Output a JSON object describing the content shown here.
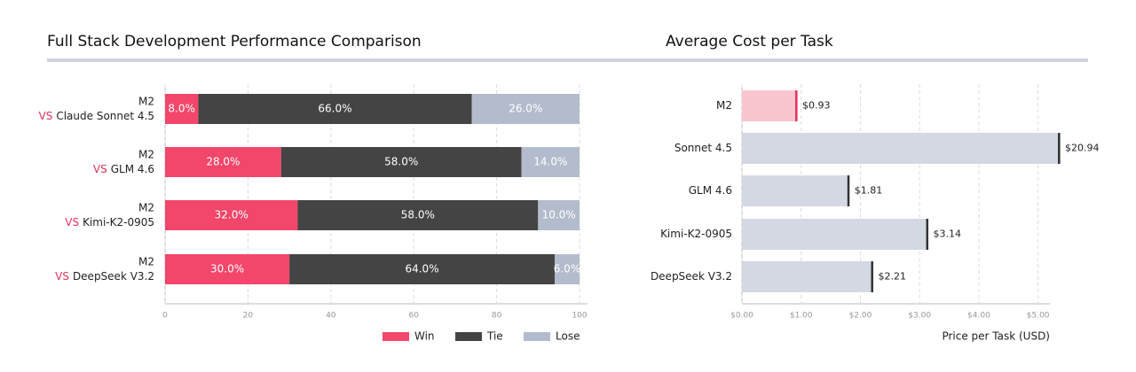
{
  "chart_data": [
    {
      "type": "stacked-bar",
      "orientation": "horizontal",
      "title": "Full Stack Development Performance Comparison",
      "categories": [
        [
          "M2",
          "VS",
          "Claude Sonnet 4.5"
        ],
        [
          "M2",
          "VS",
          "GLM 4.6"
        ],
        [
          "M2",
          "VS",
          "Kimi-K2-0905"
        ],
        [
          "M2",
          "VS",
          "DeepSeek V3.2"
        ]
      ],
      "series": [
        {
          "name": "Win",
          "color": "#f2476a",
          "values": [
            8,
            28,
            32,
            30
          ],
          "value_labels": [
            "8.0%",
            "28.0%",
            "32.0%",
            "30.0%"
          ]
        },
        {
          "name": "Tie",
          "color": "#444444",
          "values": [
            66,
            58,
            58,
            64
          ],
          "value_labels": [
            "66.0%",
            "58.0%",
            "58.0%",
            "64.0%"
          ]
        },
        {
          "name": "Lose",
          "color": "#b3bccd",
          "values": [
            26,
            14,
            10,
            6
          ],
          "value_labels": [
            "26.0%",
            "14.0%",
            "10.0%",
            "6.0%"
          ]
        }
      ],
      "xlim": [
        0,
        100
      ],
      "xticks": [
        0,
        20,
        40,
        60,
        80,
        100
      ],
      "grid": true,
      "legend": "bottom-right"
    },
    {
      "type": "bar",
      "orientation": "horizontal",
      "title": "Average Cost per Task",
      "xlabel": "Price per Task (USD)",
      "categories": [
        "M2",
        "Sonnet 4.5",
        "GLM 4.6",
        "Kimi-K2-0905",
        "DeepSeek V3.2"
      ],
      "values": [
        0.93,
        20.94,
        1.81,
        3.14,
        2.21
      ],
      "value_labels": [
        "$0.93",
        "$20.94",
        "$1.81",
        "$3.14",
        "$2.21"
      ],
      "colors": [
        "#f9c5cf",
        "#d3d8e3",
        "#d3d8e3",
        "#d3d8e3",
        "#d3d8e3"
      ],
      "edge_colors": [
        "#e0335a",
        "#333333",
        "#333333",
        "#333333",
        "#333333"
      ],
      "xlim": [
        0,
        5.2
      ],
      "xticks": [
        {
          "value": 0,
          "label": "$0.00"
        },
        {
          "value": 1,
          "label": "$1.00"
        },
        {
          "value": 2,
          "label": "$2.00"
        },
        {
          "value": 3,
          "label": "$3.00"
        },
        {
          "value": 4,
          "label": "$4.00"
        },
        {
          "value": 5,
          "label": "$5.00"
        }
      ],
      "grid": true
    }
  ]
}
